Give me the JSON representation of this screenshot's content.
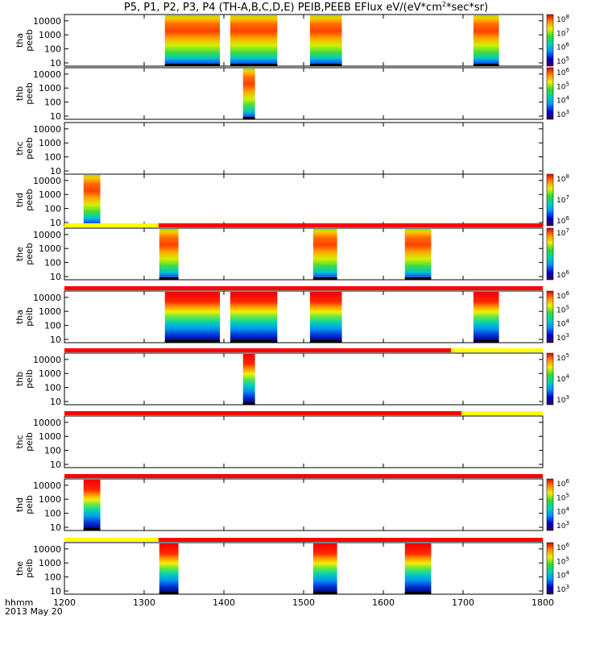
{
  "chart_data": {
    "type": "heatmap",
    "title": "P5, P1, P2, P3, P4 (TH-A,B,C,D,E) PEIB,PEEB EFlux eV/(eV*cm",
    "title_sup": "2",
    "title_end": "*sec*sr)",
    "x_label": "hhmm",
    "date_label": "2013 May 20",
    "x_range": [
      1200,
      1800
    ],
    "x_ticks": [
      "1200",
      "1300",
      "1400",
      "1500",
      "1600",
      "1700",
      "1800"
    ],
    "y_scale": "log",
    "y_ticks": [
      "10",
      "100",
      "1000",
      "10000"
    ],
    "panels": [
      {
        "probe": "tha",
        "product": "peeb",
        "bursts": [
          [
            1326,
            1395
          ],
          [
            1408,
            1467
          ],
          [
            1508,
            1548
          ],
          [
            1713,
            1745
          ]
        ],
        "colorbar": {
          "base": 10,
          "exps": [
            5,
            6,
            7,
            8
          ]
        },
        "band": null
      },
      {
        "probe": "thb",
        "product": "peeb",
        "bursts": [
          [
            1424,
            1439
          ]
        ],
        "colorbar": {
          "base": 10,
          "exps": [
            3,
            4,
            5,
            6
          ]
        },
        "band": null
      },
      {
        "probe": "thc",
        "product": "peeb",
        "bursts": [],
        "colorbar": null,
        "band": null
      },
      {
        "probe": "thd",
        "product": "peeb",
        "bursts": [
          [
            1224,
            1245
          ]
        ],
        "colorbar": {
          "base": 10,
          "exps": [
            6,
            7,
            8
          ]
        },
        "band": null
      },
      {
        "probe": "the",
        "product": "peeb",
        "bursts": [
          [
            1319,
            1343
          ],
          [
            1512,
            1542
          ],
          [
            1627,
            1660
          ]
        ],
        "colorbar": {
          "base": 10,
          "exps": [
            6,
            7
          ]
        },
        "band": [
          {
            "from": 1200,
            "to": 1318,
            "color": "#ffff00"
          },
          {
            "from": 1318,
            "to": 1800,
            "color": "#ff0000"
          }
        ]
      },
      {
        "probe": "tha",
        "product": "peib",
        "bursts": [
          [
            1326,
            1395
          ],
          [
            1408,
            1467
          ],
          [
            1508,
            1548
          ],
          [
            1713,
            1745
          ]
        ],
        "colorbar": {
          "base": 10,
          "exps": [
            3,
            4,
            5,
            6
          ]
        },
        "band": [
          {
            "from": 1200,
            "to": 1800,
            "color": "#ff0000"
          }
        ]
      },
      {
        "probe": "thb",
        "product": "peib",
        "bursts": [
          [
            1424,
            1439
          ]
        ],
        "colorbar": {
          "base": 10,
          "exps": [
            3,
            4,
            5
          ]
        },
        "band": [
          {
            "from": 1200,
            "to": 1685,
            "color": "#ff0000"
          },
          {
            "from": 1685,
            "to": 1800,
            "color": "#ffff00"
          }
        ]
      },
      {
        "probe": "thc",
        "product": "peib",
        "bursts": [],
        "colorbar": null,
        "band": [
          {
            "from": 1200,
            "to": 1698,
            "color": "#ff0000"
          },
          {
            "from": 1698,
            "to": 1800,
            "color": "#ffff00"
          }
        ]
      },
      {
        "probe": "thd",
        "product": "peib",
        "bursts": [
          [
            1224,
            1245
          ]
        ],
        "colorbar": {
          "base": 10,
          "exps": [
            3,
            4,
            5,
            6
          ]
        },
        "band": [
          {
            "from": 1200,
            "to": 1800,
            "color": "#ff0000"
          }
        ]
      },
      {
        "probe": "the",
        "product": "peib",
        "bursts": [
          [
            1319,
            1343
          ],
          [
            1512,
            1542
          ],
          [
            1627,
            1660
          ]
        ],
        "colorbar": {
          "base": 10,
          "exps": [
            3,
            4,
            5,
            6
          ]
        },
        "band": [
          {
            "from": 1200,
            "to": 1318,
            "color": "#ffff00"
          },
          {
            "from": 1318,
            "to": 1800,
            "color": "#ff0000"
          }
        ]
      }
    ]
  }
}
